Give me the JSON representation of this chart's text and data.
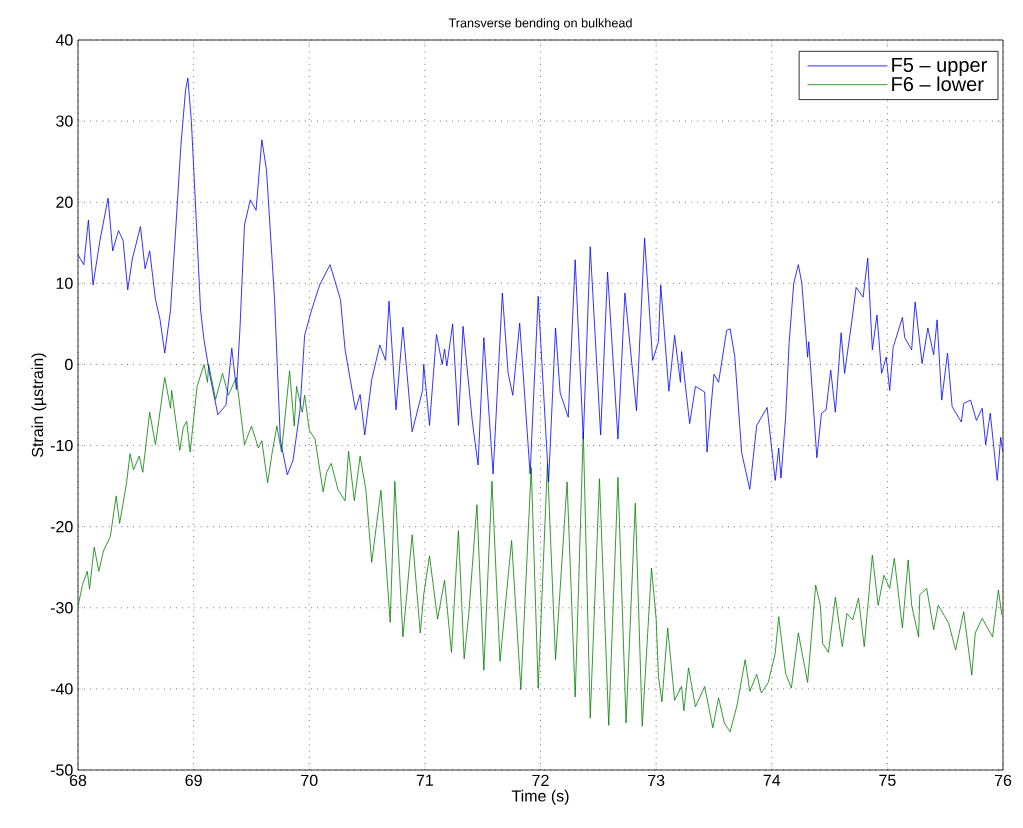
{
  "chart_data": {
    "type": "line",
    "title": "Transverse bending on bulkhead",
    "xlabel": "Time (s)",
    "ylabel": "Strain (µstrain)",
    "xlim": [
      68,
      76
    ],
    "xticks": [
      68,
      69,
      70,
      71,
      72,
      73,
      74,
      75,
      76
    ],
    "ylim": [
      -50,
      40
    ],
    "yticks": [
      -50,
      -40,
      -30,
      -20,
      -10,
      0,
      10,
      20,
      30,
      40
    ],
    "grid": true,
    "legend": "top right",
    "marker": "none",
    "line_style": "solid",
    "series": [
      {
        "name": "F5 – upper",
        "color": "#0000ff",
        "x": [
          68.0,
          68.05,
          68.09,
          68.13,
          68.19,
          68.26,
          68.3,
          68.35,
          68.39,
          68.43,
          68.47,
          68.54,
          68.58,
          68.62,
          68.67,
          68.71,
          68.75,
          68.8,
          68.85,
          68.89,
          68.93,
          68.95,
          68.98,
          69.01,
          69.06,
          69.09,
          69.14,
          69.21,
          69.28,
          69.33,
          69.37,
          69.4,
          69.44,
          69.49,
          69.54,
          69.59,
          69.63,
          69.7,
          69.75,
          69.81,
          69.86,
          69.92,
          69.96,
          70.02,
          70.09,
          70.18,
          70.27,
          70.31,
          70.4,
          70.44,
          70.48,
          70.54,
          70.61,
          70.66,
          70.69,
          70.75,
          70.81,
          70.89,
          70.98,
          70.99,
          71.04,
          71.1,
          71.15,
          71.17,
          71.19,
          71.24,
          71.29,
          71.33,
          71.41,
          71.46,
          71.51,
          71.59,
          71.67,
          71.72,
          71.76,
          71.82,
          71.91,
          71.98,
          72.07,
          72.13,
          72.17,
          72.24,
          72.3,
          72.37,
          72.43,
          72.52,
          72.58,
          72.67,
          72.73,
          72.83,
          72.9,
          72.97,
          73.02,
          73.04,
          73.11,
          73.16,
          73.21,
          73.22,
          73.29,
          73.34,
          73.42,
          73.44,
          73.5,
          73.54,
          73.61,
          73.64,
          73.68,
          73.74,
          73.81,
          73.87,
          73.96,
          74.03,
          74.06,
          74.08,
          74.12,
          74.15,
          74.19,
          74.23,
          74.26,
          74.31,
          74.32,
          74.36,
          74.39,
          74.43,
          74.47,
          74.51,
          74.55,
          74.6,
          74.63,
          74.69,
          74.73,
          74.79,
          74.83,
          74.87,
          74.91,
          74.95,
          74.99,
          75.02,
          75.05,
          75.13,
          75.15,
          75.21,
          75.24,
          75.3,
          75.35,
          75.4,
          75.43,
          75.47,
          75.52,
          75.56,
          75.64,
          75.66,
          75.72,
          75.77,
          75.82,
          75.85,
          75.89,
          75.95,
          75.98,
          76.0
        ],
        "values": [
          13.5,
          12.3,
          17.8,
          9.8,
          15.3,
          20.5,
          14,
          16.5,
          15.3,
          9.2,
          13,
          17,
          11.8,
          14,
          8,
          5.5,
          1.4,
          6.7,
          17.8,
          27,
          33.8,
          35.3,
          30.1,
          21.5,
          6.7,
          3,
          -1.3,
          -6.2,
          -5,
          2,
          -3.1,
          4.2,
          17.2,
          20.3,
          19,
          27.7,
          24,
          8,
          -9.3,
          -13.6,
          -11.8,
          -5.6,
          3.6,
          6.7,
          9.8,
          12.3,
          8,
          1.8,
          -5.6,
          -3.7,
          -8.7,
          -1.9,
          2.4,
          0.5,
          7.8,
          -5.6,
          4.6,
          -8.3,
          -3.2,
          0,
          -7.5,
          3.7,
          0,
          1.9,
          -0.2,
          5,
          -7.5,
          4.7,
          -7,
          -12.4,
          3.3,
          -13.5,
          8.8,
          -1.1,
          -3.8,
          5.1,
          -13.5,
          8.4,
          -14.5,
          4.5,
          -3.5,
          -6.5,
          12.9,
          -9.2,
          14.5,
          -8.7,
          11.4,
          -9.2,
          8.8,
          -5.7,
          15.6,
          0.5,
          2.8,
          9.8,
          -3.3,
          3.6,
          -2.2,
          1.6,
          -7.3,
          -2.7,
          -3.4,
          -10.8,
          -1.2,
          -2.2,
          4.2,
          4.4,
          1,
          -10.9,
          -15.4,
          -7.5,
          -5.3,
          -14.3,
          -10.3,
          -14,
          -6.5,
          2.6,
          10,
          12.3,
          10,
          0.9,
          2.8,
          -5.2,
          -11.5,
          -6,
          -5.6,
          -0.7,
          -5.9,
          3.9,
          -1.1,
          5.1,
          9.5,
          8.3,
          13.1,
          1.8,
          6.1,
          -1.1,
          0.9,
          -3.2,
          2.1,
          5.8,
          3.3,
          1.8,
          7.7,
          0.1,
          4.5,
          1.2,
          5.5,
          -4.4,
          1.4,
          -5.2,
          -7.1,
          -4.8,
          -4.4,
          -6.9,
          -5.4,
          -9.9,
          -6,
          -14.3,
          -9,
          -10.8
        ]
      },
      {
        "name": "F6 – lower",
        "color": "#008000",
        "x": [
          68.0,
          68.04,
          68.08,
          68.1,
          68.14,
          68.18,
          68.22,
          68.28,
          68.33,
          68.36,
          68.42,
          68.45,
          68.48,
          68.53,
          68.56,
          68.62,
          68.67,
          68.75,
          68.8,
          68.81,
          68.88,
          68.91,
          68.94,
          68.97,
          69.03,
          69.09,
          69.12,
          69.13,
          69.19,
          69.25,
          69.3,
          69.37,
          69.44,
          69.5,
          69.56,
          69.59,
          69.64,
          69.68,
          69.72,
          69.76,
          69.83,
          69.87,
          69.89,
          69.94,
          69.96,
          70.0,
          70.05,
          70.12,
          70.15,
          70.19,
          70.25,
          70.31,
          70.34,
          70.39,
          70.44,
          70.49,
          70.54,
          70.62,
          70.7,
          70.74,
          70.81,
          70.89,
          70.96,
          70.99,
          71.04,
          71.11,
          71.17,
          71.23,
          71.29,
          71.34,
          71.38,
          71.45,
          71.51,
          71.58,
          71.65,
          71.75,
          71.83,
          71.92,
          71.98,
          72.06,
          72.13,
          72.23,
          72.3,
          72.37,
          72.43,
          72.51,
          72.59,
          72.67,
          72.74,
          72.82,
          72.88,
          72.96,
          73.0,
          73.02,
          73.05,
          73.1,
          73.16,
          73.22,
          73.24,
          73.28,
          73.34,
          73.42,
          73.49,
          73.54,
          73.59,
          73.64,
          73.7,
          73.77,
          73.81,
          73.87,
          73.91,
          73.97,
          74.03,
          74.06,
          74.12,
          74.17,
          74.23,
          74.31,
          74.38,
          74.42,
          74.44,
          74.49,
          74.55,
          74.61,
          74.65,
          74.7,
          74.75,
          74.8,
          74.87,
          74.92,
          74.97,
          75.02,
          75.06,
          75.13,
          75.18,
          75.21,
          75.27,
          75.28,
          75.34,
          75.4,
          75.44,
          75.53,
          75.59,
          75.66,
          75.73,
          75.76,
          75.82,
          75.91,
          75.96,
          75.99
        ],
        "values": [
          -29.8,
          -27.1,
          -25.5,
          -27.7,
          -22.5,
          -25.5,
          -23,
          -21.2,
          -16.2,
          -19.6,
          -14.6,
          -11,
          -13,
          -11.3,
          -13.3,
          -5.9,
          -9.9,
          -1.6,
          -5.4,
          -3.2,
          -10.6,
          -7.8,
          -7,
          -10.8,
          -2.7,
          0,
          -2.2,
          0,
          -4.3,
          -1.1,
          -3.8,
          -1.6,
          -9.9,
          -7.6,
          -10.3,
          -9.4,
          -14.6,
          -10.8,
          -7.6,
          -10.8,
          -0.8,
          -7.6,
          -2.7,
          -5.9,
          -3.8,
          -8.1,
          -9.2,
          -15.7,
          -13.3,
          -12.2,
          -15.5,
          -16.8,
          -10.7,
          -16.8,
          -11.3,
          -15.5,
          -24.4,
          -15.5,
          -31.8,
          -14.4,
          -33.6,
          -21,
          -33.1,
          -28.4,
          -23.6,
          -31.4,
          -26.6,
          -35.5,
          -20.5,
          -36.3,
          -30.7,
          -17.3,
          -37.7,
          -14.4,
          -36.6,
          -21.7,
          -40.1,
          -12.7,
          -39.9,
          -12.2,
          -36.4,
          -14.5,
          -41,
          -8.3,
          -43.6,
          -14.1,
          -44.5,
          -13.9,
          -44.2,
          -17.1,
          -44.6,
          -25.1,
          -31.3,
          -38.5,
          -41.6,
          -32.5,
          -41.4,
          -39.7,
          -42.7,
          -37.4,
          -42.2,
          -39.7,
          -44.8,
          -41.1,
          -44.2,
          -45.3,
          -42,
          -36.4,
          -40.3,
          -38.2,
          -40.5,
          -39.2,
          -35.6,
          -31.1,
          -38.1,
          -39.9,
          -33.1,
          -39.2,
          -27.2,
          -29.7,
          -34.4,
          -35.5,
          -28.7,
          -34.8,
          -30.7,
          -31.5,
          -28.8,
          -34.8,
          -23.5,
          -29.7,
          -26,
          -27.6,
          -23.9,
          -32.5,
          -24.1,
          -29.7,
          -33.6,
          -28.4,
          -27.6,
          -32.7,
          -29.7,
          -31.9,
          -35.2,
          -30.5,
          -38.3,
          -33.1,
          -31.3,
          -33.6,
          -27.8,
          -30.9
        ]
      }
    ]
  }
}
